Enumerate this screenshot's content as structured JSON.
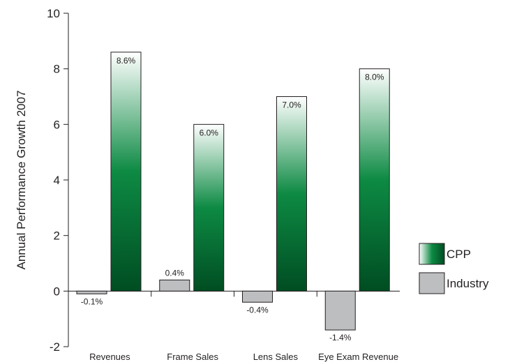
{
  "chart_data": {
    "type": "bar",
    "categories": [
      "Revenues",
      "Frame Sales",
      "Lens Sales",
      "Eye Exam Revenue"
    ],
    "series": [
      {
        "name": "Industry",
        "values": [
          -0.1,
          0.4,
          -0.4,
          -1.4
        ],
        "labels": [
          "-0.1%",
          "0.4%",
          "-0.4%",
          "-1.4%"
        ],
        "color": "#bcbec0"
      },
      {
        "name": "CPP",
        "values": [
          8.6,
          6.0,
          7.0,
          8.0
        ],
        "labels": [
          "8.6%",
          "6.0%",
          "7.0%",
          "8.0%"
        ],
        "color": "#006837"
      }
    ],
    "title": "",
    "xlabel": "",
    "ylabel": "Annual Performance Growth 2007",
    "ylim": [
      -2,
      10
    ],
    "yticks": [
      -2,
      0,
      2,
      4,
      6,
      8,
      10
    ],
    "legend_position": "right",
    "legend_order": [
      "CPP",
      "Industry"
    ],
    "grid": false
  }
}
